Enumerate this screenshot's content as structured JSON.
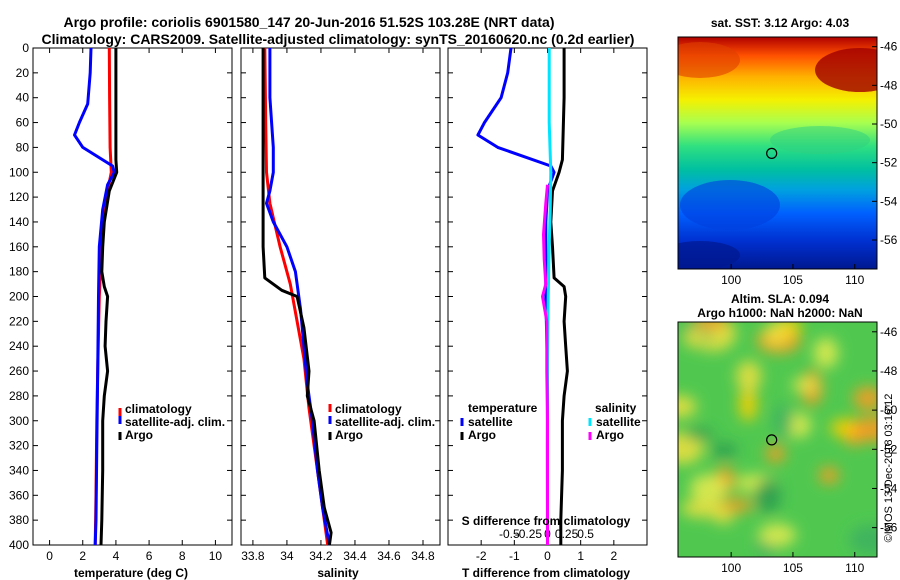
{
  "header": {
    "line1": "Argo profile: coriolis 6901580_147 20-Jun-2016 51.52S 103.28E (NRT data)",
    "line2": "Climatology: CARS2009. Satellite-adjusted climatology: synTS_20160620.nc (0.2d earlier)"
  },
  "watermark": "©IMOS 13-Dec-2018 03:16:12",
  "colors": {
    "climatology": "#ff0000",
    "satellite": "#0000ff",
    "argo": "#000000",
    "cyan": "#00e5ff",
    "magenta": "#ff00ff"
  },
  "chart_data": [
    {
      "type": "line",
      "name": "temperature-panel",
      "xlabel": "temperature (deg C)",
      "ylim": [
        0,
        400
      ],
      "xlim": [
        -1,
        11
      ],
      "x_ticks": [
        "0",
        "2",
        "4",
        "6",
        "8",
        "10"
      ],
      "x_tick_values": [
        0,
        2,
        4,
        6,
        8,
        10
      ],
      "y_ticks": [
        "0",
        "20",
        "40",
        "60",
        "80",
        "100",
        "120",
        "140",
        "160",
        "180",
        "200",
        "220",
        "240",
        "260",
        "280",
        "300",
        "320",
        "340",
        "360",
        "380",
        "400"
      ],
      "y_tick_values": [
        0,
        20,
        40,
        60,
        80,
        100,
        120,
        140,
        160,
        180,
        200,
        220,
        240,
        260,
        280,
        300,
        320,
        340,
        360,
        380,
        400
      ],
      "legend": [
        "climatology",
        "satellite-adj. clim.",
        "Argo"
      ],
      "series": [
        {
          "name": "climatology",
          "color": "#ff0000",
          "points": [
            [
              3.6,
              0
            ],
            [
              3.62,
              40
            ],
            [
              3.65,
              80
            ],
            [
              3.72,
              100
            ],
            [
              3.5,
              115
            ],
            [
              3.2,
              140
            ],
            [
              3.0,
              200
            ],
            [
              2.9,
              260
            ],
            [
              2.85,
              300
            ],
            [
              2.8,
              360
            ],
            [
              2.75,
              400
            ]
          ]
        },
        {
          "name": "satellite-adj. clim.",
          "color": "#0000ff",
          "points": [
            [
              2.5,
              0
            ],
            [
              2.45,
              20
            ],
            [
              2.3,
              45
            ],
            [
              1.8,
              60
            ],
            [
              1.5,
              70
            ],
            [
              2.0,
              80
            ],
            [
              3.8,
              95
            ],
            [
              3.9,
              100
            ],
            [
              3.5,
              110
            ],
            [
              3.2,
              130
            ],
            [
              3.0,
              160
            ],
            [
              2.95,
              200
            ],
            [
              2.9,
              260
            ],
            [
              2.85,
              320
            ],
            [
              2.8,
              380
            ],
            [
              2.75,
              400
            ]
          ]
        },
        {
          "name": "Argo",
          "color": "#000000",
          "points": [
            [
              4.0,
              0
            ],
            [
              4.0,
              40
            ],
            [
              4.0,
              90
            ],
            [
              4.05,
              100
            ],
            [
              3.6,
              115
            ],
            [
              3.3,
              140
            ],
            [
              3.2,
              160
            ],
            [
              3.15,
              180
            ],
            [
              3.3,
              192
            ],
            [
              3.5,
              200
            ],
            [
              3.4,
              220
            ],
            [
              3.35,
              240
            ],
            [
              3.5,
              260
            ],
            [
              3.3,
              280
            ],
            [
              3.2,
              300
            ],
            [
              3.2,
              340
            ],
            [
              3.15,
              380
            ],
            [
              3.1,
              400
            ]
          ]
        }
      ]
    },
    {
      "type": "line",
      "name": "salinity-panel",
      "xlabel": "salinity",
      "ylim": [
        0,
        400
      ],
      "xlim": [
        33.73,
        34.9
      ],
      "x_ticks": [
        "33.8",
        "34",
        "34.2",
        "34.4",
        "34.6",
        "34.8"
      ],
      "x_tick_values": [
        33.8,
        34.0,
        34.2,
        34.4,
        34.6,
        34.8
      ],
      "legend": [
        "climatology",
        "satellite-adj. clim.",
        "Argo"
      ],
      "series": [
        {
          "name": "climatology",
          "color": "#ff0000",
          "points": [
            [
              33.87,
              0
            ],
            [
              33.875,
              60
            ],
            [
              33.88,
              100
            ],
            [
              33.9,
              125
            ],
            [
              33.96,
              160
            ],
            [
              34.02,
              190
            ],
            [
              34.06,
              220
            ],
            [
              34.1,
              250
            ],
            [
              34.13,
              290
            ],
            [
              34.17,
              330
            ],
            [
              34.21,
              370
            ],
            [
              34.24,
              400
            ]
          ]
        },
        {
          "name": "satellite-adj. clim.",
          "color": "#0000ff",
          "points": [
            [
              33.9,
              0
            ],
            [
              33.9,
              40
            ],
            [
              33.92,
              80
            ],
            [
              33.92,
              100
            ],
            [
              33.9,
              115
            ],
            [
              33.88,
              125
            ],
            [
              33.92,
              140
            ],
            [
              34.0,
              160
            ],
            [
              34.05,
              180
            ],
            [
              34.08,
              210
            ],
            [
              34.1,
              240
            ],
            [
              34.12,
              270
            ],
            [
              34.15,
              300
            ],
            [
              34.18,
              340
            ],
            [
              34.21,
              370
            ],
            [
              34.25,
              400
            ]
          ]
        },
        {
          "name": "Argo",
          "color": "#000000",
          "points": [
            [
              33.86,
              0
            ],
            [
              33.86,
              60
            ],
            [
              33.86,
              120
            ],
            [
              33.86,
              160
            ],
            [
              33.87,
              185
            ],
            [
              33.97,
              195
            ],
            [
              34.06,
              200
            ],
            [
              34.1,
              225
            ],
            [
              34.13,
              260
            ],
            [
              34.12,
              280
            ],
            [
              34.16,
              300
            ],
            [
              34.19,
              340
            ],
            [
              34.22,
              370
            ],
            [
              34.26,
              390
            ],
            [
              34.25,
              400
            ]
          ]
        }
      ]
    },
    {
      "type": "line",
      "name": "difference-panel",
      "xlabel": "T difference from climatology",
      "xlabel_top": "S difference from climatology",
      "ylim": [
        0,
        400
      ],
      "xlim": [
        -3,
        3
      ],
      "x_ticks": [
        "-2",
        "-1",
        "0",
        "1",
        "2"
      ],
      "x_tick_values": [
        -2,
        -1,
        0,
        1,
        2
      ],
      "x2_ticks": [
        "-0.5",
        "-0.25",
        "0",
        "0.25",
        "0.5"
      ],
      "x2_tick_values": [
        -0.5,
        -0.25,
        0,
        0.25,
        0.5
      ],
      "legend_titles": [
        "temperature",
        "salinity"
      ],
      "legend_left": [
        "satellite",
        "Argo"
      ],
      "legend_right": [
        "satellite",
        "Argo"
      ],
      "series": [
        {
          "name": "temperature satellite",
          "color": "#0000ff",
          "points": [
            [
              -1.1,
              0
            ],
            [
              -1.2,
              20
            ],
            [
              -1.4,
              40
            ],
            [
              -1.9,
              60
            ],
            [
              -2.1,
              70
            ],
            [
              -1.5,
              80
            ],
            [
              0.1,
              95
            ],
            [
              0.2,
              100
            ],
            [
              0.0,
              115
            ],
            [
              -0.05,
              140
            ],
            [
              -0.05,
              200
            ],
            [
              0.0,
              260
            ],
            [
              0.0,
              320
            ],
            [
              0.0,
              400
            ]
          ]
        },
        {
          "name": "temperature Argo",
          "color": "#000000",
          "points": [
            [
              0.5,
              0
            ],
            [
              0.5,
              40
            ],
            [
              0.45,
              90
            ],
            [
              0.35,
              100
            ],
            [
              0.15,
              115
            ],
            [
              0.1,
              140
            ],
            [
              0.15,
              160
            ],
            [
              0.2,
              185
            ],
            [
              0.5,
              192
            ],
            [
              0.55,
              200
            ],
            [
              0.5,
              220
            ],
            [
              0.55,
              240
            ],
            [
              0.6,
              260
            ],
            [
              0.5,
              280
            ],
            [
              0.45,
              300
            ],
            [
              0.45,
              340
            ],
            [
              0.4,
              380
            ],
            [
              0.4,
              400
            ]
          ]
        },
        {
          "name": "salinity satellite",
          "color": "#00e5ff",
          "points": [
            [
              0.05,
              0
            ],
            [
              0.05,
              60
            ],
            [
              0.1,
              100
            ],
            [
              0.08,
              130
            ],
            [
              0.05,
              160
            ],
            [
              0.02,
              200
            ],
            [
              0.0,
              260
            ],
            [
              -0.01,
              320
            ],
            [
              0.0,
              400
            ]
          ]
        },
        {
          "name": "salinity Argo",
          "color": "#ff00ff",
          "points": [
            [
              0.0,
              110
            ],
            [
              -0.05,
              125
            ],
            [
              -0.12,
              150
            ],
            [
              -0.1,
              170
            ],
            [
              -0.05,
              190
            ],
            [
              -0.15,
              200
            ],
            [
              -0.02,
              220
            ],
            [
              -0.02,
              260
            ],
            [
              0.0,
              300
            ],
            [
              0.0,
              400
            ]
          ]
        }
      ]
    },
    {
      "type": "heatmap",
      "name": "sst-map",
      "title": "sat. SST: 3.12 Argo: 4.03",
      "x_ticks": [
        "100",
        "105",
        "110"
      ],
      "x_tick_values": [
        100,
        105,
        110
      ],
      "y_ticks": [
        "-46",
        "-48",
        "-50",
        "-52",
        "-54",
        "-56"
      ],
      "y_tick_values": [
        -46,
        -48,
        -50,
        -52,
        -54,
        -56
      ],
      "xlim": [
        95.7,
        111.8
      ],
      "ylim": [
        -57.5,
        -45.5
      ],
      "argo_position": [
        103.28,
        -51.52
      ]
    },
    {
      "type": "heatmap",
      "name": "sla-map",
      "title": "Altim. SLA: 0.094",
      "subtitle": "Argo h1000: NaN h2000: NaN",
      "x_ticks": [
        "100",
        "105",
        "110"
      ],
      "x_tick_values": [
        100,
        105,
        110
      ],
      "y_ticks": [
        "-46",
        "-48",
        "-50",
        "-52",
        "-54",
        "-56"
      ],
      "y_tick_values": [
        -46,
        -48,
        -50,
        -52,
        -54,
        -56
      ],
      "xlim": [
        95.7,
        111.8
      ],
      "ylim": [
        -57.5,
        -45.5
      ],
      "argo_position": [
        103.28,
        -51.52
      ]
    }
  ]
}
